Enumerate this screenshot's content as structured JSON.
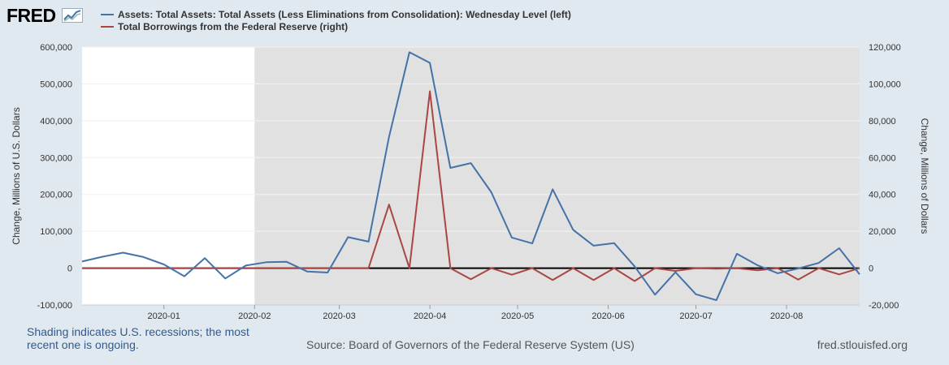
{
  "logo": {
    "text": "FRED"
  },
  "legend": [
    {
      "label": "Assets: Total Assets: Total Assets (Less Eliminations from Consolidation): Wednesday Level (left)",
      "color": "#4572a7"
    },
    {
      "label": "Total Borrowings from the Federal Reserve (right)",
      "color": "#aa4643"
    }
  ],
  "notes": {
    "shading": "Shading indicates U.S. recessions; the most recent one is ongoing.",
    "source": "Source: Board of Governors of the Federal Reserve System (US)",
    "site": "fred.stlouisfed.org"
  },
  "chart_data": {
    "type": "line",
    "ylabel_left": "Change, Millions of U.S. Dollars",
    "ylabel_right": "Change, Millions of Dollars",
    "left_axis": {
      "min": -100000,
      "max": 600000,
      "ticks": [
        -100000,
        0,
        100000,
        200000,
        300000,
        400000,
        500000,
        600000
      ],
      "tick_labels": [
        "-100,000",
        "0",
        "100,000",
        "200,000",
        "300,000",
        "400,000",
        "500,000",
        "600,000"
      ]
    },
    "right_axis": {
      "min": -20000,
      "max": 120000,
      "ticks": [
        -20000,
        0,
        20000,
        40000,
        60000,
        80000,
        100000,
        120000
      ],
      "tick_labels": [
        "-20,000",
        "0",
        "20,000",
        "40,000",
        "60,000",
        "80,000",
        "100,000",
        "120,000"
      ]
    },
    "x_range": [
      "2019-12-04",
      "2020-08-26"
    ],
    "x_ticks": [
      {
        "date": "2020-01-01",
        "label": "2020-01"
      },
      {
        "date": "2020-02-01",
        "label": "2020-02"
      },
      {
        "date": "2020-03-01",
        "label": "2020-03"
      },
      {
        "date": "2020-04-01",
        "label": "2020-04"
      },
      {
        "date": "2020-05-01",
        "label": "2020-05"
      },
      {
        "date": "2020-06-01",
        "label": "2020-06"
      },
      {
        "date": "2020-07-01",
        "label": "2020-07"
      },
      {
        "date": "2020-08-01",
        "label": "2020-08"
      }
    ],
    "recession": {
      "start": "2020-02-01",
      "end": "2020-08-26"
    },
    "x": [
      "2019-12-04",
      "2019-12-11",
      "2019-12-18",
      "2019-12-25",
      "2020-01-01",
      "2020-01-08",
      "2020-01-15",
      "2020-01-22",
      "2020-01-29",
      "2020-02-05",
      "2020-02-12",
      "2020-02-19",
      "2020-02-26",
      "2020-03-04",
      "2020-03-11",
      "2020-03-18",
      "2020-03-25",
      "2020-04-01",
      "2020-04-08",
      "2020-04-15",
      "2020-04-22",
      "2020-04-29",
      "2020-05-06",
      "2020-05-13",
      "2020-05-20",
      "2020-05-27",
      "2020-06-03",
      "2020-06-10",
      "2020-06-17",
      "2020-06-24",
      "2020-07-01",
      "2020-07-08",
      "2020-07-15",
      "2020-07-22",
      "2020-07-29",
      "2020-08-05",
      "2020-08-12",
      "2020-08-19",
      "2020-08-26"
    ],
    "series": [
      {
        "name": "Assets: Total Assets: Total Assets (Less Eliminations from Consolidation): Wednesday Level (left)",
        "axis": "left",
        "color": "#4572a7",
        "values": [
          18000,
          31000,
          42000,
          30000,
          10000,
          -22000,
          27000,
          -28000,
          7000,
          16000,
          17000,
          -9000,
          -12000,
          84000,
          72000,
          356000,
          586000,
          557000,
          272000,
          285000,
          206000,
          83000,
          67000,
          214000,
          104000,
          61000,
          68000,
          5000,
          -72000,
          -11000,
          -71000,
          -87000,
          39000,
          8000,
          -14000,
          -1000,
          14000,
          54000,
          -17000
        ]
      },
      {
        "name": "Total Borrowings from the Federal Reserve (right)",
        "axis": "right",
        "color": "#aa4643",
        "values": [
          0,
          0,
          0,
          0,
          0,
          0,
          0,
          0,
          0,
          0,
          0,
          0,
          0,
          0,
          0,
          34500,
          0,
          96000,
          0,
          -6000,
          0,
          -3600,
          0,
          -6500,
          0,
          -6500,
          0,
          -7000,
          0,
          -1500,
          0,
          -300,
          0,
          -1200,
          0,
          -6200,
          0,
          -3400,
          0
        ]
      }
    ]
  }
}
